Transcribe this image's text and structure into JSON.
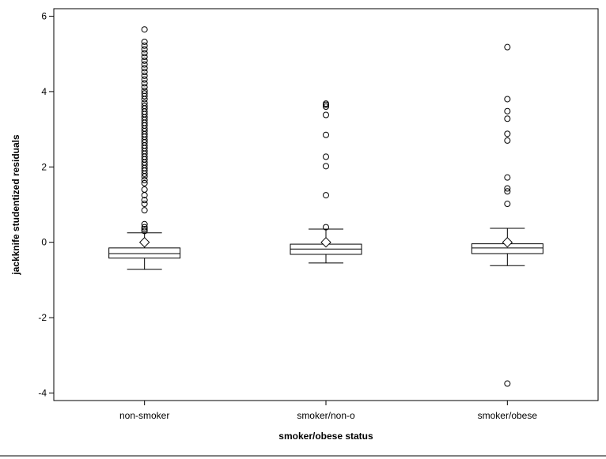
{
  "chart_data": {
    "type": "box",
    "title": "",
    "xlabel": "smoker/obese status",
    "ylabel": "jackknife studentized residuals",
    "ylim": [
      -4.2,
      6.2
    ],
    "yticks": [
      -4,
      -2,
      0,
      2,
      4,
      6
    ],
    "ytick_labels": [
      "-4",
      "-2",
      "0",
      "2",
      "4",
      "6"
    ],
    "grid": false,
    "legend": "none",
    "categories": [
      "non-smoker",
      "smoker/non-o",
      "smoker/obese"
    ],
    "boxes": [
      {
        "category": "non-smoker",
        "whisker_low": -0.72,
        "q1": -0.42,
        "median": -0.3,
        "q3": -0.15,
        "whisker_high": 0.25,
        "mean": 0.0,
        "outliers": [
          5.65,
          5.32,
          5.22,
          5.12,
          5.02,
          4.92,
          4.82,
          4.72,
          4.62,
          4.52,
          4.42,
          4.32,
          4.22,
          4.12,
          4.02,
          3.95,
          3.88,
          3.8,
          3.7,
          3.62,
          3.55,
          3.47,
          3.4,
          3.32,
          3.25,
          3.17,
          3.1,
          3.02,
          2.95,
          2.87,
          2.8,
          2.72,
          2.65,
          2.57,
          2.5,
          2.42,
          2.35,
          2.27,
          2.2,
          2.12,
          2.05,
          1.97,
          1.9,
          1.82,
          1.75,
          1.65,
          1.57,
          1.4,
          1.25,
          1.12,
          1.02,
          0.85,
          0.48,
          0.4,
          0.35,
          0.3
        ]
      },
      {
        "category": "smoker/non-o",
        "whisker_low": -0.55,
        "q1": -0.32,
        "median": -0.18,
        "q3": -0.05,
        "whisker_high": 0.35,
        "mean": 0.0,
        "outliers": [
          3.68,
          3.65,
          3.6,
          3.38,
          2.85,
          2.27,
          2.02,
          1.25,
          0.4
        ]
      },
      {
        "category": "smoker/obese",
        "whisker_low": -0.62,
        "q1": -0.3,
        "median": -0.15,
        "q3": -0.04,
        "whisker_high": 0.37,
        "mean": 0.0,
        "outliers": [
          5.18,
          3.8,
          3.48,
          3.28,
          2.88,
          2.7,
          1.72,
          1.43,
          1.35,
          1.02,
          -3.75
        ]
      }
    ]
  }
}
